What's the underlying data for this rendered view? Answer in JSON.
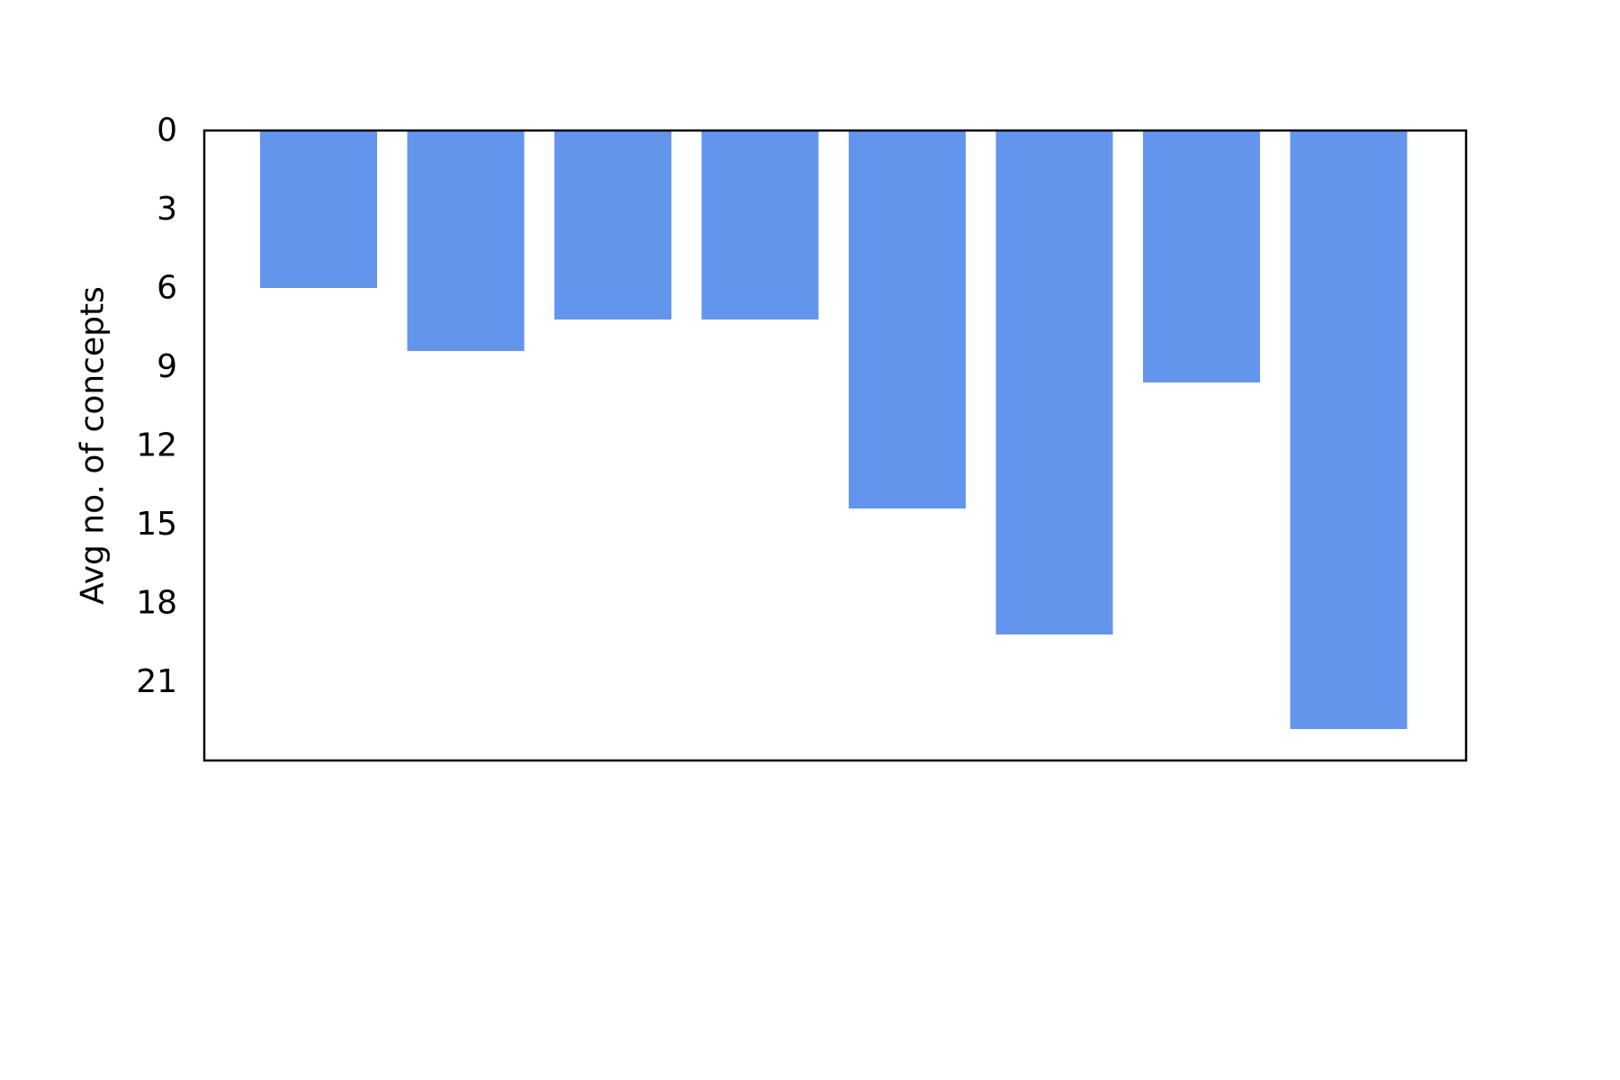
{
  "chart_data": {
    "type": "bar",
    "orientation": "vertical",
    "y_inverted": true,
    "title": "",
    "xlabel": "",
    "ylabel": "Avg no. of concepts",
    "categories": [
      "",
      "",
      "",
      "",
      "",
      "",
      "",
      ""
    ],
    "values": [
      6.0,
      8.4,
      7.2,
      7.2,
      14.4,
      19.2,
      9.6,
      22.8
    ],
    "ylim": [
      0,
      24
    ],
    "yticks": [
      0,
      3,
      6,
      9,
      12,
      15,
      18,
      21
    ],
    "bar_color": "#6495ED",
    "grid": false,
    "legend": "none"
  }
}
